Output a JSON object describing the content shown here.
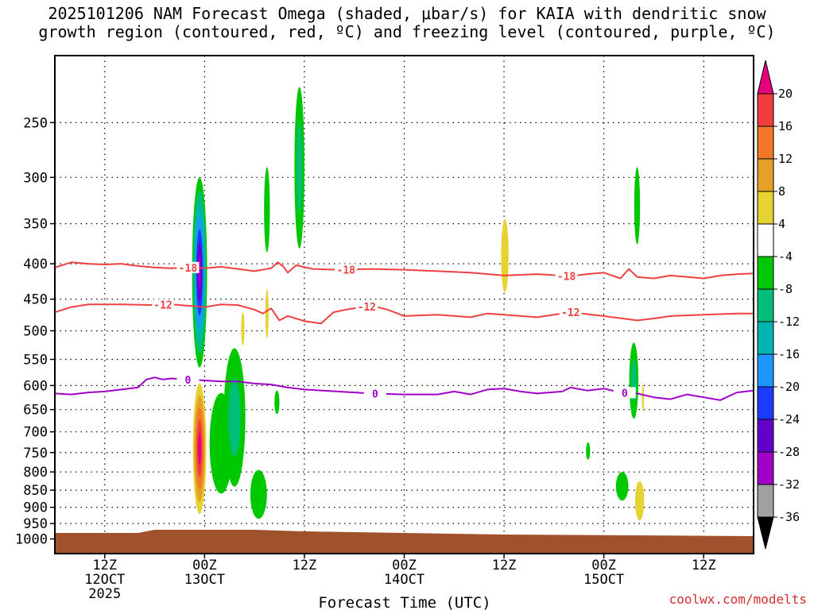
{
  "title": {
    "line1": "2025101206 NAM Forecast Omega (shaded, μbar/s) for KAIA with dendritic snow",
    "line2": "growth region (contoured, red, ºC) and freezing level (contoured, purple, ºC)"
  },
  "credit": "coolwx.com/modelts",
  "chart_data": {
    "type": "heatmap",
    "title": "2025101206 NAM Forecast Omega (shaded, μbar/s) for KAIA with dendritic snow growth region (contoured, red, ºC) and freezing level (contoured, purple, ºC)",
    "xlabel": "Forecast Time (UTC)",
    "ylabel": "",
    "x_range_hours": [
      6,
      90
    ],
    "y_axis": {
      "scale": "log",
      "reversed": true,
      "range": [
        200,
        1050
      ],
      "ticks": [
        250,
        300,
        350,
        400,
        450,
        500,
        550,
        600,
        650,
        700,
        750,
        800,
        850,
        900,
        950,
        1000
      ]
    },
    "x_ticks": [
      {
        "hour": 12,
        "lines": [
          "12Z",
          "12OCT",
          "2025"
        ]
      },
      {
        "hour": 24,
        "lines": [
          "00Z",
          "13OCT"
        ]
      },
      {
        "hour": 36,
        "lines": [
          "12Z"
        ]
      },
      {
        "hour": 48,
        "lines": [
          "00Z",
          "14OCT"
        ]
      },
      {
        "hour": 60,
        "lines": [
          "12Z"
        ]
      },
      {
        "hour": 72,
        "lines": [
          "00Z",
          "15OCT"
        ]
      },
      {
        "hour": 84,
        "lines": [
          "12Z"
        ]
      }
    ],
    "grid": "dotted",
    "colorbar": {
      "units": "μbar/s",
      "labels": [
        "20",
        "16",
        "12",
        "8",
        "4",
        "-4",
        "-8",
        "-12",
        "-16",
        "-20",
        "-24",
        "-28",
        "-32",
        "-36"
      ],
      "top_arrow_color": "#e6007e",
      "bottom_arrow_color": "#000000",
      "bands": [
        {
          "from": 16,
          "to": 20,
          "color": "#f03c3c"
        },
        {
          "from": 12,
          "to": 16,
          "color": "#f07828"
        },
        {
          "from": 8,
          "to": 12,
          "color": "#e6a028"
        },
        {
          "from": 4,
          "to": 8,
          "color": "#e6d232"
        },
        {
          "from": -4,
          "to": 4,
          "color": "#ffffff"
        },
        {
          "from": -8,
          "to": -4,
          "color": "#00c800"
        },
        {
          "from": -12,
          "to": -8,
          "color": "#00be78"
        },
        {
          "from": -16,
          "to": -12,
          "color": "#00b4b4"
        },
        {
          "from": -20,
          "to": -16,
          "color": "#1e96ff"
        },
        {
          "from": -24,
          "to": -20,
          "color": "#1e3cff"
        },
        {
          "from": -28,
          "to": -24,
          "color": "#6400c8"
        },
        {
          "from": -32,
          "to": -28,
          "color": "#a000c8"
        },
        {
          "from": -36,
          "to": -32,
          "color": "#a0a0a0"
        }
      ]
    },
    "contours": [
      {
        "name": "-18",
        "color": "#f04040",
        "labels": [
          {
            "hour": 22,
            "text": "-18"
          },
          {
            "hour": 41,
            "text": "-18"
          },
          {
            "hour": 67.5,
            "text": "-18"
          }
        ],
        "points": [
          [
            6,
            405
          ],
          [
            8,
            398
          ],
          [
            10,
            400
          ],
          [
            12,
            401
          ],
          [
            14,
            400
          ],
          [
            16,
            403
          ],
          [
            18,
            405
          ],
          [
            20,
            406
          ],
          [
            22,
            405
          ],
          [
            24,
            406
          ],
          [
            26,
            404
          ],
          [
            28,
            407
          ],
          [
            30,
            410
          ],
          [
            32,
            406
          ],
          [
            32.8,
            398
          ],
          [
            33.5,
            404
          ],
          [
            34,
            412
          ],
          [
            35,
            402
          ],
          [
            37,
            407
          ],
          [
            40,
            408
          ],
          [
            44,
            407
          ],
          [
            48,
            408
          ],
          [
            52,
            410
          ],
          [
            56,
            412
          ],
          [
            60,
            416
          ],
          [
            64,
            414
          ],
          [
            68,
            417
          ],
          [
            70,
            414
          ],
          [
            72,
            412
          ],
          [
            74,
            420
          ],
          [
            75,
            407
          ],
          [
            76,
            418
          ],
          [
            78,
            420
          ],
          [
            80,
            416
          ],
          [
            84,
            420
          ],
          [
            86,
            416
          ],
          [
            88,
            414
          ],
          [
            90,
            413
          ]
        ]
      },
      {
        "name": "-12",
        "color": "#f04040",
        "labels": [
          {
            "hour": 19,
            "text": "-12"
          },
          {
            "hour": 43.5,
            "text": "-12"
          },
          {
            "hour": 68,
            "text": "-12"
          }
        ],
        "points": [
          [
            6,
            470
          ],
          [
            8,
            462
          ],
          [
            10,
            458
          ],
          [
            14,
            458
          ],
          [
            18,
            459
          ],
          [
            20,
            458
          ],
          [
            22,
            460
          ],
          [
            24,
            462
          ],
          [
            26,
            458
          ],
          [
            28,
            459
          ],
          [
            30,
            466
          ],
          [
            31,
            472
          ],
          [
            32,
            464
          ],
          [
            33,
            483
          ],
          [
            34,
            476
          ],
          [
            36,
            484
          ],
          [
            38,
            488
          ],
          [
            39.5,
            470
          ],
          [
            41,
            466
          ],
          [
            44,
            460
          ],
          [
            46,
            466
          ],
          [
            48,
            476
          ],
          [
            52,
            474
          ],
          [
            56,
            478
          ],
          [
            58,
            472
          ],
          [
            60,
            474
          ],
          [
            64,
            478
          ],
          [
            68,
            470
          ],
          [
            72,
            476
          ],
          [
            76,
            483
          ],
          [
            78,
            480
          ],
          [
            80,
            476
          ],
          [
            84,
            474
          ],
          [
            88,
            472
          ],
          [
            90,
            472
          ]
        ]
      },
      {
        "name": "0",
        "color": "#a000c8",
        "labels": [
          {
            "hour": 22,
            "text": "0"
          },
          {
            "hour": 44.5,
            "text": "0"
          },
          {
            "hour": 74.5,
            "text": "0"
          }
        ],
        "points": [
          [
            6,
            616
          ],
          [
            8,
            618
          ],
          [
            10,
            614
          ],
          [
            12,
            612
          ],
          [
            14,
            608
          ],
          [
            16,
            604
          ],
          [
            17,
            588
          ],
          [
            18,
            584
          ],
          [
            19,
            588
          ],
          [
            20,
            586
          ],
          [
            22,
            588
          ],
          [
            24,
            590
          ],
          [
            26,
            592
          ],
          [
            28,
            592
          ],
          [
            30,
            596
          ],
          [
            32,
            598
          ],
          [
            34,
            604
          ],
          [
            36,
            608
          ],
          [
            40,
            612
          ],
          [
            44,
            616
          ],
          [
            48,
            618
          ],
          [
            52,
            618
          ],
          [
            54,
            612
          ],
          [
            56,
            618
          ],
          [
            58,
            608
          ],
          [
            60,
            606
          ],
          [
            62,
            612
          ],
          [
            64,
            616
          ],
          [
            67,
            612
          ],
          [
            68,
            604
          ],
          [
            70,
            610
          ],
          [
            72,
            606
          ],
          [
            74,
            614
          ],
          [
            76,
            616
          ],
          [
            78,
            624
          ],
          [
            80,
            628
          ],
          [
            82,
            618
          ],
          [
            84,
            624
          ],
          [
            86,
            630
          ],
          [
            88,
            614
          ],
          [
            90,
            610
          ]
        ]
      }
    ],
    "shaded_regions": [
      {
        "hour": 23.4,
        "p_top": 300,
        "p_bot": 565,
        "halfwidth_h": 0.9,
        "layers": [
          "#00c800",
          "#00be78",
          "#00b4b4",
          "#1e96ff",
          "#1e3cff",
          "#6400c8",
          "#a000c8"
        ]
      },
      {
        "hour": 23.4,
        "p_top": 595,
        "p_bot": 920,
        "halfwidth_h": 0.8,
        "layers": [
          "#e6d232",
          "#e6a028",
          "#f07828",
          "#f03c3c",
          "#e6007e"
        ]
      },
      {
        "hour": 35.4,
        "p_top": 222,
        "p_bot": 380,
        "halfwidth_h": 0.6,
        "layers": [
          "#00c800",
          "#00be78"
        ]
      },
      {
        "hour": 31.5,
        "p_top": 290,
        "p_bot": 385,
        "halfwidth_h": 0.35,
        "layers": [
          "#00c800"
        ]
      },
      {
        "hour": 31.5,
        "p_top": 435,
        "p_bot": 512,
        "halfwidth_h": 0.2,
        "layers": [
          "#e6d232"
        ]
      },
      {
        "hour": 28.6,
        "p_top": 470,
        "p_bot": 525,
        "halfwidth_h": 0.2,
        "layers": [
          "#e6d232"
        ]
      },
      {
        "hour": 32.7,
        "p_top": 610,
        "p_bot": 660,
        "halfwidth_h": 0.3,
        "layers": [
          "#00c800"
        ]
      },
      {
        "hour": 26.0,
        "p_top": 615,
        "p_bot": 860,
        "halfwidth_h": 1.4,
        "layers": [
          "#00c800"
        ]
      },
      {
        "hour": 27.6,
        "p_top": 530,
        "p_bot": 840,
        "halfwidth_h": 1.3,
        "layers": [
          "#00c800",
          "#00be78"
        ]
      },
      {
        "hour": 30.5,
        "p_top": 795,
        "p_bot": 935,
        "halfwidth_h": 1.0,
        "layers": [
          "#00c800"
        ]
      },
      {
        "hour": 60.1,
        "p_top": 345,
        "p_bot": 440,
        "halfwidth_h": 0.45,
        "layers": [
          "#e6d232"
        ]
      },
      {
        "hour": 76.0,
        "p_top": 290,
        "p_bot": 375,
        "halfwidth_h": 0.35,
        "layers": [
          "#00c800"
        ]
      },
      {
        "hour": 75.6,
        "p_top": 520,
        "p_bot": 670,
        "halfwidth_h": 0.55,
        "layers": [
          "#00c800",
          "#00be78"
        ]
      },
      {
        "hour": 76.7,
        "p_top": 595,
        "p_bot": 655,
        "halfwidth_h": 0.12,
        "layers": [
          "#e6d232"
        ]
      },
      {
        "hour": 70.1,
        "p_top": 725,
        "p_bot": 768,
        "halfwidth_h": 0.25,
        "layers": [
          "#00c800"
        ]
      },
      {
        "hour": 74.2,
        "p_top": 800,
        "p_bot": 880,
        "halfwidth_h": 0.75,
        "layers": [
          "#00c800"
        ]
      },
      {
        "hour": 76.3,
        "p_top": 825,
        "p_bot": 940,
        "halfwidth_h": 0.55,
        "layers": [
          "#e6d232"
        ]
      }
    ],
    "terrain": {
      "color": "#a0522d",
      "p_surface": 975
    }
  }
}
